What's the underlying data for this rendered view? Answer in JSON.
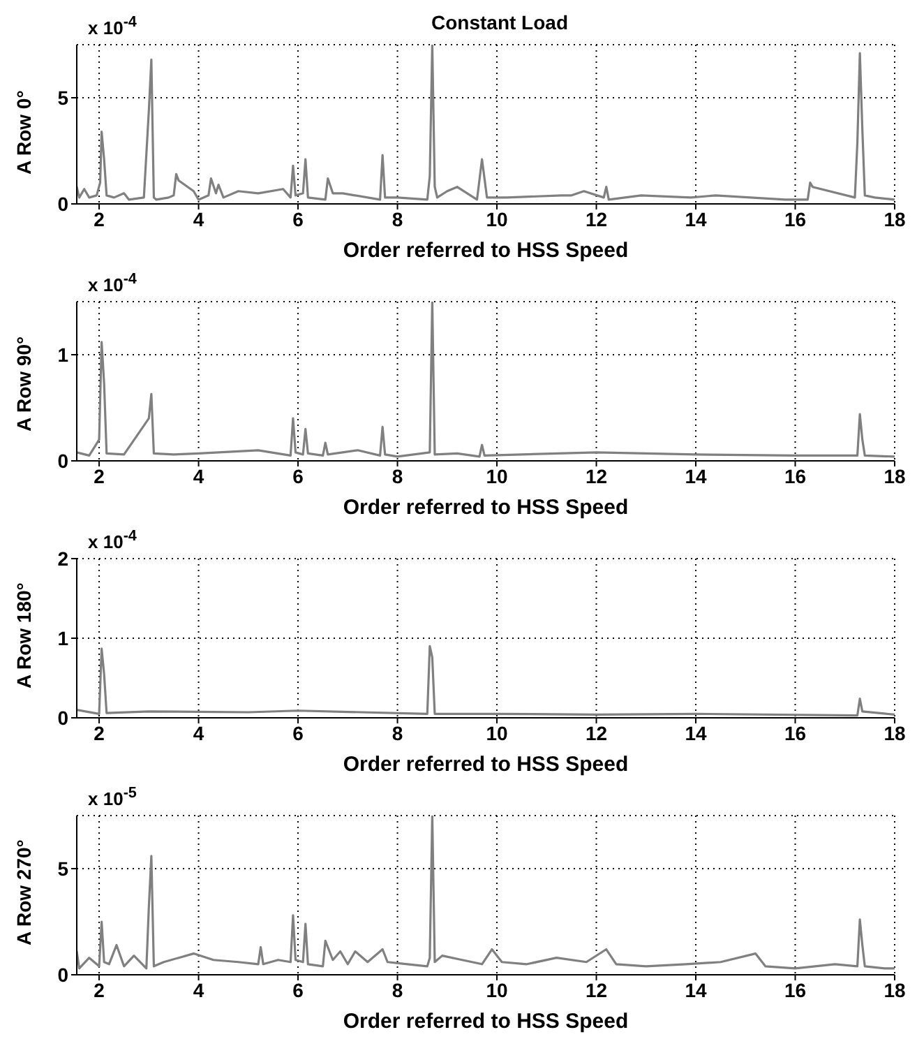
{
  "chart_data": [
    {
      "type": "line",
      "title": "Constant Load",
      "xlabel": "Order referred to HSS Speed",
      "ylabel": "A Row 0°",
      "annotations": [
        "x 10$^{-4}$"
      ],
      "xlim": [
        1.55,
        18
      ],
      "xticks": [
        2,
        4,
        6,
        8,
        10,
        12,
        14,
        16,
        18
      ],
      "ylim": [
        0,
        7.5
      ],
      "yticks": [
        0,
        5
      ],
      "grid": true,
      "x": [
        1.55,
        1.6,
        1.7,
        1.8,
        1.95,
        2.02,
        2.05,
        2.1,
        2.15,
        2.3,
        2.5,
        2.6,
        2.9,
        3.0,
        3.05,
        3.1,
        3.15,
        3.4,
        3.5,
        3.55,
        3.6,
        3.9,
        4.0,
        4.2,
        4.25,
        4.35,
        4.4,
        4.5,
        4.8,
        5.2,
        5.7,
        5.85,
        5.9,
        5.95,
        6.1,
        6.15,
        6.2,
        6.55,
        6.6,
        6.7,
        6.9,
        7.65,
        7.7,
        7.75,
        8.0,
        8.6,
        8.65,
        8.7,
        8.75,
        8.8,
        9.0,
        9.2,
        9.6,
        9.7,
        9.75,
        9.8,
        10.2,
        11.3,
        11.5,
        11.75,
        12.15,
        12.2,
        12.25,
        12.9,
        13.9,
        14.4,
        15.8,
        16.25,
        16.3,
        16.35,
        17.2,
        17.25,
        17.3,
        17.35,
        17.4,
        17.6,
        18
      ],
      "series": [
        {
          "color": "#808080",
          "values": [
            0.8,
            0.3,
            0.7,
            0.3,
            0.4,
            1.0,
            3.4,
            2.1,
            0.4,
            0.3,
            0.5,
            0.2,
            0.3,
            4.4,
            6.8,
            0.3,
            0.2,
            0.3,
            0.4,
            1.4,
            1.1,
            0.6,
            0.2,
            0.4,
            1.2,
            0.5,
            0.9,
            0.3,
            0.6,
            0.5,
            0.7,
            0.3,
            1.8,
            0.4,
            0.5,
            2.1,
            0.3,
            0.2,
            1.2,
            0.5,
            0.5,
            0.2,
            2.3,
            0.3,
            0.3,
            0.2,
            1.3,
            7.5,
            0.8,
            0.3,
            0.6,
            0.8,
            0.2,
            2.1,
            1.2,
            0.3,
            0.3,
            0.4,
            0.4,
            0.6,
            0.3,
            0.8,
            0.2,
            0.4,
            0.3,
            0.4,
            0.2,
            0.2,
            1.0,
            0.8,
            0.3,
            2.9,
            7.1,
            3.5,
            0.4,
            0.3,
            0.2
          ]
        }
      ]
    },
    {
      "type": "line",
      "xlabel": "Order referred to HSS Speed",
      "ylabel": "A Row 90°",
      "annotations": [
        "x 10$^{-4}$"
      ],
      "xlim": [
        1.55,
        18
      ],
      "xticks": [
        2,
        4,
        6,
        8,
        10,
        12,
        14,
        16,
        18
      ],
      "ylim": [
        0,
        1.5
      ],
      "yticks": [
        0,
        1
      ],
      "grid": true,
      "x": [
        1.55,
        1.8,
        2.0,
        2.05,
        2.1,
        2.15,
        2.5,
        3.0,
        3.05,
        3.1,
        3.5,
        4.0,
        5.2,
        5.85,
        5.9,
        5.95,
        6.1,
        6.15,
        6.2,
        6.5,
        6.55,
        6.6,
        7.2,
        7.65,
        7.7,
        7.75,
        8.0,
        8.65,
        8.7,
        8.75,
        9.2,
        9.65,
        9.7,
        9.75,
        10.5,
        12.0,
        14.0,
        16.0,
        17.25,
        17.3,
        17.35,
        17.4,
        18
      ],
      "series": [
        {
          "color": "#808080",
          "values": [
            0.08,
            0.05,
            0.2,
            1.12,
            0.73,
            0.07,
            0.06,
            0.4,
            0.63,
            0.07,
            0.06,
            0.07,
            0.1,
            0.05,
            0.4,
            0.08,
            0.06,
            0.3,
            0.07,
            0.05,
            0.17,
            0.06,
            0.1,
            0.05,
            0.32,
            0.06,
            0.04,
            0.08,
            1.5,
            0.06,
            0.07,
            0.04,
            0.15,
            0.05,
            0.06,
            0.08,
            0.06,
            0.05,
            0.05,
            0.44,
            0.2,
            0.05,
            0.04
          ]
        }
      ]
    },
    {
      "type": "line",
      "xlabel": "Order referred to HSS Speed",
      "ylabel": "A Row 180°",
      "annotations": [
        "x 10$^{-4}$"
      ],
      "xlim": [
        1.55,
        18
      ],
      "xticks": [
        2,
        4,
        6,
        8,
        10,
        12,
        14,
        16,
        18
      ],
      "ylim": [
        0,
        2
      ],
      "yticks": [
        0,
        1,
        2
      ],
      "grid": true,
      "x": [
        1.55,
        2.0,
        2.05,
        2.1,
        2.15,
        3.0,
        5.0,
        6.0,
        8.6,
        8.65,
        8.7,
        8.75,
        10,
        12,
        14,
        17.25,
        17.3,
        17.35,
        18
      ],
      "series": [
        {
          "color": "#808080",
          "values": [
            0.1,
            0.05,
            0.87,
            0.55,
            0.06,
            0.08,
            0.07,
            0.09,
            0.05,
            0.9,
            0.76,
            0.05,
            0.05,
            0.04,
            0.05,
            0.03,
            0.24,
            0.08,
            0.04
          ]
        }
      ]
    },
    {
      "type": "line",
      "xlabel": "Order referred to HSS Speed",
      "ylabel": "A Row 270°",
      "annotations": [
        "x 10$^{-5}$"
      ],
      "xlim": [
        1.55,
        18
      ],
      "xticks": [
        2,
        4,
        6,
        8,
        10,
        12,
        14,
        16,
        18
      ],
      "ylim": [
        0,
        7.5
      ],
      "yticks": [
        0,
        5
      ],
      "grid": true,
      "x": [
        1.55,
        1.6,
        1.8,
        2.0,
        2.05,
        2.1,
        2.2,
        2.35,
        2.5,
        2.7,
        2.95,
        3.0,
        3.05,
        3.1,
        3.3,
        3.6,
        3.9,
        4.3,
        4.8,
        5.2,
        5.25,
        5.3,
        5.6,
        5.85,
        5.9,
        5.95,
        6.1,
        6.15,
        6.2,
        6.5,
        6.55,
        6.7,
        6.85,
        7.0,
        7.15,
        7.4,
        7.7,
        7.8,
        8.2,
        8.6,
        8.65,
        8.7,
        8.75,
        8.9,
        9.3,
        9.7,
        9.9,
        10.1,
        10.6,
        11.2,
        11.8,
        12.2,
        12.4,
        13.0,
        13.8,
        14.5,
        15.2,
        15.4,
        16.0,
        16.8,
        17.25,
        17.3,
        17.35,
        17.4,
        17.8,
        18
      ],
      "series": [
        {
          "color": "#808080",
          "values": [
            1.1,
            0.3,
            0.8,
            0.4,
            2.5,
            0.6,
            0.5,
            1.4,
            0.4,
            0.9,
            0.3,
            3.2,
            5.6,
            0.4,
            0.6,
            0.8,
            1.0,
            0.7,
            0.6,
            0.5,
            1.3,
            0.5,
            0.7,
            0.6,
            2.8,
            0.7,
            0.6,
            2.4,
            0.5,
            0.4,
            1.6,
            0.7,
            1.1,
            0.5,
            1.1,
            0.6,
            1.2,
            0.6,
            0.5,
            0.4,
            0.8,
            7.5,
            0.6,
            0.9,
            0.7,
            0.5,
            1.2,
            0.6,
            0.5,
            0.8,
            0.6,
            1.2,
            0.5,
            0.4,
            0.5,
            0.6,
            1.0,
            0.4,
            0.3,
            0.5,
            0.4,
            2.6,
            1.4,
            0.4,
            0.3,
            0.3
          ]
        }
      ]
    }
  ]
}
